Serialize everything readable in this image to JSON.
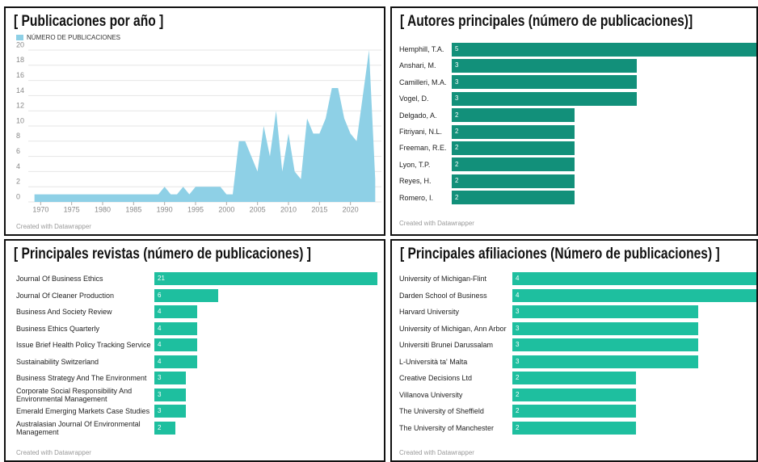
{
  "chart_data": [
    {
      "type": "area",
      "title": "[ Publicaciones por año ]",
      "legend": "NÚMERO DE PUBLICACIONES",
      "footer": "Created with Datawrapper",
      "color": "#8ed0e6",
      "x": [
        1969,
        1970,
        1971,
        1972,
        1973,
        1974,
        1975,
        1976,
        1977,
        1978,
        1979,
        1980,
        1981,
        1982,
        1983,
        1984,
        1985,
        1986,
        1987,
        1988,
        1989,
        1990,
        1991,
        1992,
        1993,
        1994,
        1995,
        1996,
        1997,
        1998,
        1999,
        2000,
        2001,
        2002,
        2003,
        2004,
        2005,
        2006,
        2007,
        2008,
        2009,
        2010,
        2011,
        2012,
        2013,
        2014,
        2015,
        2016,
        2017,
        2018,
        2019,
        2020,
        2021,
        2022,
        2023,
        2024
      ],
      "values": [
        1,
        1,
        1,
        1,
        1,
        1,
        1,
        1,
        1,
        1,
        1,
        1,
        1,
        1,
        1,
        1,
        1,
        1,
        1,
        1,
        1,
        2,
        1,
        1,
        2,
        1,
        2,
        2,
        2,
        2,
        2,
        1,
        1,
        8,
        8,
        6,
        4,
        10,
        6,
        12,
        4,
        9,
        4,
        3,
        11,
        9,
        9,
        11,
        15,
        15,
        11,
        9,
        8,
        14,
        20,
        3
      ],
      "xlim": [
        1968,
        2025
      ],
      "xticks": [
        1970,
        1975,
        1980,
        1985,
        1990,
        1995,
        2000,
        2005,
        2010,
        2015,
        2020
      ],
      "ylim": [
        0,
        20
      ],
      "yticks": [
        0,
        2,
        4,
        6,
        8,
        10,
        12,
        14,
        16,
        18,
        20
      ],
      "grid": true
    },
    {
      "type": "bar",
      "orientation": "horizontal",
      "title": "[ Autores principales (número de publicaciones)]",
      "footer": "Created with Datawrapper",
      "color": "#12907a",
      "categories": [
        "Hemphill, T.A.",
        "Anshari, M.",
        "Camilleri, M.A.",
        "Vogel, D.",
        "Delgado, A.",
        "Fitriyani, N.L.",
        "Freeman, R.E.",
        "Lyon, T.P.",
        "Reyes, H.",
        "Romero, I."
      ],
      "values": [
        5,
        3,
        3,
        3,
        2,
        2,
        2,
        2,
        2,
        2
      ],
      "xlim": [
        0,
        5
      ]
    },
    {
      "type": "bar",
      "orientation": "horizontal",
      "title": "[ Principales revistas (número de publicaciones) ]",
      "footer": "Created with Datawrapper",
      "color": "#1ebf9f",
      "categories": [
        "Journal Of Business Ethics",
        "Journal Of Cleaner Production",
        "Business And Society Review",
        "Business Ethics Quarterly",
        "Issue Brief Health Policy Tracking Service",
        "Sustainability Switzerland",
        "Business Strategy And The Environment",
        "Corporate Social Responsibility And Environmental Management",
        "Emerald Emerging Markets Case Studies",
        "Australasian Journal Of Environmental Management"
      ],
      "values": [
        21,
        6,
        4,
        4,
        4,
        4,
        3,
        3,
        3,
        2
      ],
      "xlim": [
        0,
        21
      ]
    },
    {
      "type": "bar",
      "orientation": "horizontal",
      "title": "[ Principales afiliaciones (Número de publicaciones) ]",
      "footer": "Created with Datawrapper",
      "color": "#1ebf9f",
      "categories": [
        "University of Michigan-Flint",
        "Darden School of Business",
        "Harvard University",
        "University of Michigan, Ann Arbor",
        "Universiti Brunei Darussalam",
        "L-Università ta' Malta",
        "Creative Decisions Ltd",
        "Villanova University",
        "The University of Sheffield",
        "The University of Manchester"
      ],
      "values": [
        4,
        4,
        3,
        3,
        3,
        3,
        2,
        2,
        2,
        2
      ],
      "xlim": [
        0,
        4
      ]
    }
  ]
}
